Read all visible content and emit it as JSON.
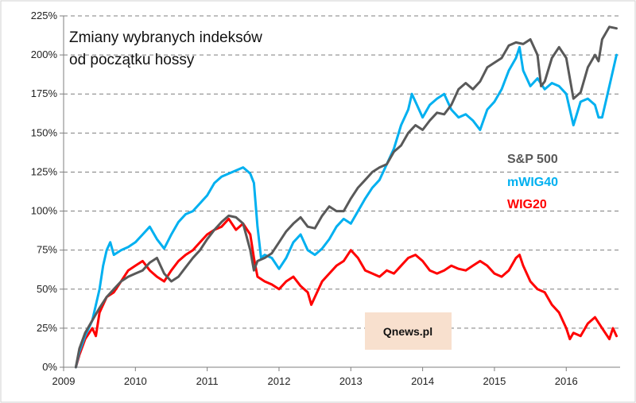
{
  "chart_data": {
    "type": "line",
    "title": [
      "Zmiany wybranych indeksów",
      "od początku hossy"
    ],
    "xlabel": "",
    "ylabel": "",
    "x_ticks": [
      "2009",
      "2010",
      "2011",
      "2012",
      "2013",
      "2014",
      "2015",
      "2016"
    ],
    "xlim": [
      2009.0,
      2016.75
    ],
    "y_ticks": [
      "0%",
      "25%",
      "50%",
      "75%",
      "100%",
      "125%",
      "150%",
      "175%",
      "200%",
      "225%"
    ],
    "ylim": [
      0,
      225
    ],
    "grid": "horizontal dashed",
    "legend_position": "right-middle",
    "series": [
      {
        "name": "S&P 500",
        "color": "#595959",
        "points": [
          [
            2009.17,
            0
          ],
          [
            2009.22,
            12
          ],
          [
            2009.3,
            22
          ],
          [
            2009.4,
            30
          ],
          [
            2009.5,
            38
          ],
          [
            2009.6,
            45
          ],
          [
            2009.7,
            50
          ],
          [
            2009.8,
            55
          ],
          [
            2009.9,
            58
          ],
          [
            2010.0,
            60
          ],
          [
            2010.1,
            62
          ],
          [
            2010.2,
            67
          ],
          [
            2010.3,
            70
          ],
          [
            2010.4,
            60
          ],
          [
            2010.5,
            55
          ],
          [
            2010.6,
            58
          ],
          [
            2010.7,
            64
          ],
          [
            2010.8,
            70
          ],
          [
            2010.9,
            75
          ],
          [
            2011.0,
            82
          ],
          [
            2011.1,
            88
          ],
          [
            2011.2,
            93
          ],
          [
            2011.3,
            97
          ],
          [
            2011.4,
            96
          ],
          [
            2011.5,
            92
          ],
          [
            2011.6,
            75
          ],
          [
            2011.65,
            62
          ],
          [
            2011.7,
            68
          ],
          [
            2011.8,
            70
          ],
          [
            2011.9,
            73
          ],
          [
            2012.0,
            80
          ],
          [
            2012.1,
            87
          ],
          [
            2012.2,
            92
          ],
          [
            2012.3,
            96
          ],
          [
            2012.4,
            90
          ],
          [
            2012.5,
            89
          ],
          [
            2012.6,
            97
          ],
          [
            2012.7,
            103
          ],
          [
            2012.8,
            100
          ],
          [
            2012.9,
            100
          ],
          [
            2013.0,
            108
          ],
          [
            2013.1,
            115
          ],
          [
            2013.2,
            120
          ],
          [
            2013.3,
            125
          ],
          [
            2013.4,
            128
          ],
          [
            2013.5,
            130
          ],
          [
            2013.6,
            138
          ],
          [
            2013.7,
            142
          ],
          [
            2013.8,
            150
          ],
          [
            2013.9,
            155
          ],
          [
            2014.0,
            152
          ],
          [
            2014.1,
            158
          ],
          [
            2014.2,
            163
          ],
          [
            2014.3,
            162
          ],
          [
            2014.4,
            168
          ],
          [
            2014.5,
            178
          ],
          [
            2014.6,
            182
          ],
          [
            2014.7,
            178
          ],
          [
            2014.8,
            183
          ],
          [
            2014.9,
            192
          ],
          [
            2015.0,
            195
          ],
          [
            2015.1,
            198
          ],
          [
            2015.2,
            206
          ],
          [
            2015.3,
            208
          ],
          [
            2015.4,
            207
          ],
          [
            2015.5,
            210
          ],
          [
            2015.6,
            200
          ],
          [
            2015.65,
            180
          ],
          [
            2015.7,
            183
          ],
          [
            2015.8,
            198
          ],
          [
            2015.9,
            205
          ],
          [
            2016.0,
            198
          ],
          [
            2016.05,
            185
          ],
          [
            2016.1,
            172
          ],
          [
            2016.2,
            176
          ],
          [
            2016.3,
            192
          ],
          [
            2016.4,
            200
          ],
          [
            2016.45,
            196
          ],
          [
            2016.5,
            210
          ],
          [
            2016.6,
            218
          ],
          [
            2016.7,
            217
          ]
        ]
      },
      {
        "name": "mWIG40",
        "color": "#00B0F0",
        "points": [
          [
            2009.17,
            0
          ],
          [
            2009.22,
            10
          ],
          [
            2009.3,
            20
          ],
          [
            2009.4,
            30
          ],
          [
            2009.5,
            50
          ],
          [
            2009.55,
            65
          ],
          [
            2009.6,
            75
          ],
          [
            2009.65,
            80
          ],
          [
            2009.7,
            72
          ],
          [
            2009.8,
            75
          ],
          [
            2009.9,
            77
          ],
          [
            2010.0,
            80
          ],
          [
            2010.1,
            85
          ],
          [
            2010.2,
            90
          ],
          [
            2010.3,
            82
          ],
          [
            2010.4,
            76
          ],
          [
            2010.5,
            85
          ],
          [
            2010.6,
            93
          ],
          [
            2010.7,
            98
          ],
          [
            2010.8,
            100
          ],
          [
            2010.9,
            105
          ],
          [
            2011.0,
            110
          ],
          [
            2011.1,
            118
          ],
          [
            2011.2,
            122
          ],
          [
            2011.3,
            124
          ],
          [
            2011.4,
            126
          ],
          [
            2011.5,
            128
          ],
          [
            2011.6,
            124
          ],
          [
            2011.65,
            118
          ],
          [
            2011.7,
            90
          ],
          [
            2011.75,
            70
          ],
          [
            2011.8,
            72
          ],
          [
            2011.9,
            70
          ],
          [
            2012.0,
            63
          ],
          [
            2012.1,
            70
          ],
          [
            2012.2,
            80
          ],
          [
            2012.3,
            85
          ],
          [
            2012.4,
            75
          ],
          [
            2012.5,
            72
          ],
          [
            2012.6,
            76
          ],
          [
            2012.7,
            82
          ],
          [
            2012.8,
            90
          ],
          [
            2012.9,
            95
          ],
          [
            2013.0,
            92
          ],
          [
            2013.1,
            100
          ],
          [
            2013.2,
            108
          ],
          [
            2013.3,
            115
          ],
          [
            2013.4,
            120
          ],
          [
            2013.5,
            130
          ],
          [
            2013.6,
            140
          ],
          [
            2013.7,
            155
          ],
          [
            2013.8,
            165
          ],
          [
            2013.85,
            175
          ],
          [
            2013.9,
            170
          ],
          [
            2014.0,
            160
          ],
          [
            2014.1,
            168
          ],
          [
            2014.2,
            172
          ],
          [
            2014.3,
            175
          ],
          [
            2014.4,
            165
          ],
          [
            2014.5,
            160
          ],
          [
            2014.6,
            162
          ],
          [
            2014.7,
            158
          ],
          [
            2014.8,
            152
          ],
          [
            2014.9,
            165
          ],
          [
            2015.0,
            170
          ],
          [
            2015.1,
            178
          ],
          [
            2015.2,
            190
          ],
          [
            2015.3,
            198
          ],
          [
            2015.35,
            205
          ],
          [
            2015.4,
            190
          ],
          [
            2015.5,
            180
          ],
          [
            2015.6,
            185
          ],
          [
            2015.7,
            178
          ],
          [
            2015.8,
            182
          ],
          [
            2015.9,
            180
          ],
          [
            2016.0,
            175
          ],
          [
            2016.05,
            165
          ],
          [
            2016.1,
            155
          ],
          [
            2016.2,
            170
          ],
          [
            2016.3,
            172
          ],
          [
            2016.4,
            168
          ],
          [
            2016.45,
            160
          ],
          [
            2016.5,
            160
          ],
          [
            2016.6,
            180
          ],
          [
            2016.7,
            200
          ]
        ]
      },
      {
        "name": "WIG20",
        "color": "#FF0000",
        "points": [
          [
            2009.17,
            0
          ],
          [
            2009.22,
            8
          ],
          [
            2009.3,
            18
          ],
          [
            2009.4,
            25
          ],
          [
            2009.45,
            20
          ],
          [
            2009.5,
            35
          ],
          [
            2009.6,
            45
          ],
          [
            2009.7,
            48
          ],
          [
            2009.8,
            55
          ],
          [
            2009.9,
            62
          ],
          [
            2010.0,
            65
          ],
          [
            2010.1,
            68
          ],
          [
            2010.2,
            62
          ],
          [
            2010.3,
            58
          ],
          [
            2010.4,
            55
          ],
          [
            2010.5,
            62
          ],
          [
            2010.6,
            68
          ],
          [
            2010.7,
            72
          ],
          [
            2010.8,
            75
          ],
          [
            2010.9,
            80
          ],
          [
            2011.0,
            85
          ],
          [
            2011.1,
            88
          ],
          [
            2011.2,
            90
          ],
          [
            2011.3,
            95
          ],
          [
            2011.4,
            88
          ],
          [
            2011.5,
            92
          ],
          [
            2011.6,
            85
          ],
          [
            2011.65,
            70
          ],
          [
            2011.7,
            58
          ],
          [
            2011.8,
            55
          ],
          [
            2011.9,
            53
          ],
          [
            2012.0,
            50
          ],
          [
            2012.1,
            55
          ],
          [
            2012.2,
            58
          ],
          [
            2012.3,
            52
          ],
          [
            2012.4,
            48
          ],
          [
            2012.45,
            40
          ],
          [
            2012.5,
            45
          ],
          [
            2012.6,
            55
          ],
          [
            2012.7,
            60
          ],
          [
            2012.8,
            65
          ],
          [
            2012.9,
            68
          ],
          [
            2013.0,
            75
          ],
          [
            2013.1,
            70
          ],
          [
            2013.2,
            62
          ],
          [
            2013.3,
            60
          ],
          [
            2013.4,
            58
          ],
          [
            2013.5,
            62
          ],
          [
            2013.6,
            60
          ],
          [
            2013.7,
            65
          ],
          [
            2013.8,
            70
          ],
          [
            2013.9,
            72
          ],
          [
            2014.0,
            68
          ],
          [
            2014.1,
            62
          ],
          [
            2014.2,
            60
          ],
          [
            2014.3,
            62
          ],
          [
            2014.4,
            65
          ],
          [
            2014.5,
            63
          ],
          [
            2014.6,
            62
          ],
          [
            2014.7,
            65
          ],
          [
            2014.8,
            68
          ],
          [
            2014.9,
            65
          ],
          [
            2015.0,
            60
          ],
          [
            2015.1,
            58
          ],
          [
            2015.2,
            62
          ],
          [
            2015.3,
            70
          ],
          [
            2015.35,
            72
          ],
          [
            2015.4,
            65
          ],
          [
            2015.5,
            55
          ],
          [
            2015.6,
            50
          ],
          [
            2015.7,
            48
          ],
          [
            2015.8,
            40
          ],
          [
            2015.9,
            35
          ],
          [
            2016.0,
            25
          ],
          [
            2016.05,
            18
          ],
          [
            2016.1,
            22
          ],
          [
            2016.2,
            20
          ],
          [
            2016.3,
            28
          ],
          [
            2016.4,
            32
          ],
          [
            2016.5,
            25
          ],
          [
            2016.6,
            18
          ],
          [
            2016.65,
            25
          ],
          [
            2016.7,
            20
          ]
        ]
      }
    ]
  },
  "watermark": {
    "text": "Qnews.pl",
    "color": "#F8E0CE"
  },
  "colors": {
    "grid": "#7f7f7f",
    "axis": "#7f7f7f",
    "text": "#222222"
  }
}
